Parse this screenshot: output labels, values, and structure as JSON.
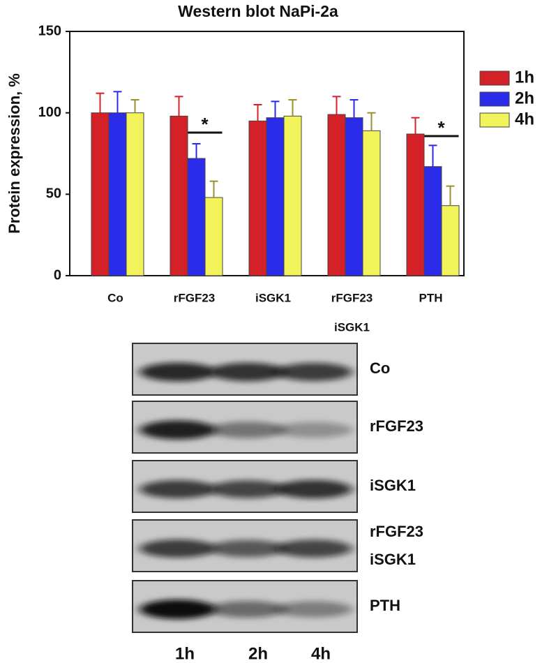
{
  "chart_data": {
    "type": "bar",
    "title": "Western blot NaPi-2a",
    "y_label": "Protein expression, %",
    "categories": [
      "Co",
      "rFGF23",
      "iSGK1",
      [
        "rFGF23",
        "iSGK1"
      ],
      "PTH"
    ],
    "series": [
      {
        "name": "1h",
        "color": "#d42027",
        "values": [
          100,
          98,
          95,
          99,
          87
        ],
        "errors": [
          12,
          12,
          10,
          11,
          10
        ]
      },
      {
        "name": "2h",
        "color": "#2b2bea",
        "values": [
          100,
          72,
          97,
          97,
          67
        ],
        "errors": [
          13,
          9,
          10,
          11,
          13
        ]
      },
      {
        "name": "4h",
        "color": "#f2f25a",
        "values": [
          100,
          48,
          98,
          89,
          43
        ],
        "errors": [
          8,
          10,
          10,
          11,
          12
        ]
      }
    ],
    "annotations": [
      "*",
      "*"
    ],
    "ylim": [
      0,
      150
    ],
    "yticks": [
      0,
      50,
      100,
      150
    ],
    "legend": "right"
  },
  "blot": {
    "rows": [
      "Co",
      "rFGF23",
      "iSGK1",
      [
        "rFGF23",
        "iSGK1"
      ],
      "PTH"
    ],
    "columns": [
      "1h",
      "2h",
      "4h"
    ]
  }
}
